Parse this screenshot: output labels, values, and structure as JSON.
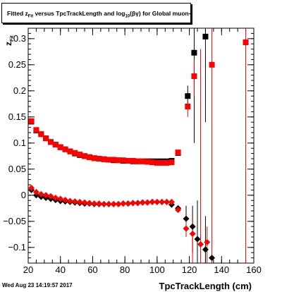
{
  "footer": {
    "timestamp": "Wed Aug 23 14:19:57 2017"
  },
  "chart_data": {
    "type": "scatter",
    "title_parts": {
      "lead": "Fitted  z",
      "sub1": "Fit",
      "mid": " versus TpcTrackLength and log",
      "sub2": "10",
      "tail": "(βγ) for Global muon+"
    },
    "xlabel": "TpcTrackLength (cm)",
    "ylabel": "z",
    "ylabel_sub": "Fit",
    "xlim": [
      20,
      160
    ],
    "ylim": [
      -0.13,
      0.32
    ],
    "x_ticks": [
      20,
      40,
      60,
      80,
      100,
      120,
      140,
      160
    ],
    "x_tick_labels": [
      "20",
      "40",
      "60",
      "80",
      "100",
      "120",
      "140",
      "160"
    ],
    "y_ticks": [
      -0.1,
      -0.05,
      0,
      0.05,
      0.1,
      0.15,
      0.2,
      0.25,
      0.3
    ],
    "y_tick_labels": [
      "−0.1",
      "−0.05",
      "0",
      "0.05",
      "0.1",
      "0.15",
      "0.2",
      "0.25",
      "0.3"
    ],
    "series": [
      {
        "marker": "square",
        "color": "#000000",
        "points": [
          [
            22,
            0.141
          ],
          [
            25,
            0.124
          ],
          [
            28,
            0.117
          ],
          [
            31,
            0.109
          ],
          [
            34,
            0.102
          ],
          [
            37,
            0.097
          ],
          [
            40,
            0.092
          ],
          [
            43,
            0.088
          ],
          [
            46,
            0.084
          ],
          [
            49,
            0.08
          ],
          [
            52,
            0.077
          ],
          [
            55,
            0.075
          ],
          [
            58,
            0.073
          ],
          [
            61,
            0.071
          ],
          [
            64,
            0.07
          ],
          [
            67,
            0.069
          ],
          [
            70,
            0.068
          ],
          [
            73,
            0.067
          ],
          [
            76,
            0.067
          ],
          [
            79,
            0.066
          ],
          [
            82,
            0.066
          ],
          [
            85,
            0.065
          ],
          [
            88,
            0.065
          ],
          [
            91,
            0.065
          ],
          [
            94,
            0.065
          ],
          [
            97,
            0.065
          ],
          [
            100,
            0.065
          ],
          [
            103,
            0.065
          ],
          [
            106,
            0.065
          ],
          [
            109,
            0.066
          ],
          [
            113,
            0.081
          ],
          [
            119,
            0.19
          ],
          [
            123,
            0.273
          ],
          [
            130,
            0.304
          ]
        ],
        "errors": [
          [
            119,
            0.21,
            0.17
          ],
          [
            123,
            0.32,
            0.1
          ],
          [
            130,
            0.32,
            0.14
          ]
        ]
      },
      {
        "marker": "diamond",
        "color": "#000000",
        "points": [
          [
            22,
            0.01
          ],
          [
            25,
            0.0
          ],
          [
            28,
            -0.003
          ],
          [
            31,
            -0.005
          ],
          [
            34,
            -0.007
          ],
          [
            37,
            -0.009
          ],
          [
            40,
            -0.011
          ],
          [
            43,
            -0.012
          ],
          [
            46,
            -0.013
          ],
          [
            49,
            -0.014
          ],
          [
            52,
            -0.015
          ],
          [
            55,
            -0.016
          ],
          [
            58,
            -0.016
          ],
          [
            61,
            -0.017
          ],
          [
            64,
            -0.017
          ],
          [
            67,
            -0.017
          ],
          [
            70,
            -0.017
          ],
          [
            73,
            -0.017
          ],
          [
            76,
            -0.017
          ],
          [
            79,
            -0.016
          ],
          [
            82,
            -0.016
          ],
          [
            85,
            -0.015
          ],
          [
            88,
            -0.015
          ],
          [
            91,
            -0.014
          ],
          [
            94,
            -0.014
          ],
          [
            97,
            -0.013
          ],
          [
            100,
            -0.013
          ],
          [
            103,
            -0.013
          ],
          [
            106,
            -0.013
          ],
          [
            109,
            -0.018
          ],
          [
            113,
            -0.025
          ],
          [
            118,
            -0.045
          ],
          [
            122,
            -0.06
          ],
          [
            125,
            -0.084
          ],
          [
            130,
            -0.104
          ],
          [
            134,
            -0.12
          ]
        ],
        "errors": [
          [
            118,
            -0.02,
            -0.07
          ],
          [
            122,
            -0.02,
            -0.11
          ],
          [
            125,
            -0.01,
            -0.13
          ],
          [
            130,
            -0.04,
            -0.13
          ]
        ]
      },
      {
        "marker": "square",
        "color": "#ff0000",
        "points": [
          [
            22,
            0.142
          ],
          [
            25,
            0.125
          ],
          [
            28,
            0.117
          ],
          [
            31,
            0.109
          ],
          [
            34,
            0.102
          ],
          [
            37,
            0.097
          ],
          [
            40,
            0.092
          ],
          [
            43,
            0.088
          ],
          [
            46,
            0.084
          ],
          [
            49,
            0.081
          ],
          [
            52,
            0.078
          ],
          [
            55,
            0.075
          ],
          [
            58,
            0.073
          ],
          [
            61,
            0.071
          ],
          [
            64,
            0.07
          ],
          [
            67,
            0.069
          ],
          [
            70,
            0.068
          ],
          [
            73,
            0.068
          ],
          [
            76,
            0.067
          ],
          [
            79,
            0.067
          ],
          [
            82,
            0.066
          ],
          [
            85,
            0.066
          ],
          [
            88,
            0.065
          ],
          [
            91,
            0.065
          ],
          [
            94,
            0.064
          ],
          [
            97,
            0.063
          ],
          [
            100,
            0.062
          ],
          [
            103,
            0.062
          ],
          [
            106,
            0.062
          ],
          [
            109,
            0.063
          ],
          [
            113,
            0.082
          ],
          [
            119,
            0.17
          ],
          [
            123,
            0.228
          ],
          [
            134,
            0.25
          ],
          [
            155,
            0.293
          ]
        ],
        "errors": [
          [
            119,
            0.19,
            0.15
          ],
          [
            123,
            0.26,
            0.19
          ],
          [
            134,
            0.32,
            -0.13
          ],
          [
            155,
            0.32,
            -0.13
          ]
        ]
      },
      {
        "marker": "diamond",
        "color": "#ff0000",
        "points": [
          [
            22,
            0.014
          ],
          [
            25,
            0.006
          ],
          [
            28,
            0.002
          ],
          [
            31,
            0.0
          ],
          [
            34,
            -0.002
          ],
          [
            37,
            -0.005
          ],
          [
            40,
            -0.007
          ],
          [
            43,
            -0.009
          ],
          [
            46,
            -0.011
          ],
          [
            49,
            -0.012
          ],
          [
            52,
            -0.013
          ],
          [
            55,
            -0.014
          ],
          [
            58,
            -0.015
          ],
          [
            61,
            -0.016
          ],
          [
            64,
            -0.016
          ],
          [
            67,
            -0.017
          ],
          [
            70,
            -0.017
          ],
          [
            73,
            -0.017
          ],
          [
            76,
            -0.017
          ],
          [
            79,
            -0.016
          ],
          [
            82,
            -0.016
          ],
          [
            85,
            -0.015
          ],
          [
            88,
            -0.015
          ],
          [
            91,
            -0.014
          ],
          [
            94,
            -0.014
          ],
          [
            97,
            -0.013
          ],
          [
            100,
            -0.013
          ],
          [
            103,
            -0.013
          ],
          [
            106,
            -0.013
          ],
          [
            109,
            -0.013
          ],
          [
            113,
            -0.028
          ],
          [
            118,
            -0.064
          ],
          [
            122,
            -0.074
          ],
          [
            127,
            -0.094
          ],
          [
            131,
            -0.09
          ]
        ],
        "errors": [
          [
            118,
            -0.05,
            -0.08
          ],
          [
            122,
            -0.05,
            -0.13
          ],
          [
            127,
            0.28,
            -0.13
          ],
          [
            131,
            -0.06,
            -0.13
          ]
        ]
      }
    ]
  }
}
